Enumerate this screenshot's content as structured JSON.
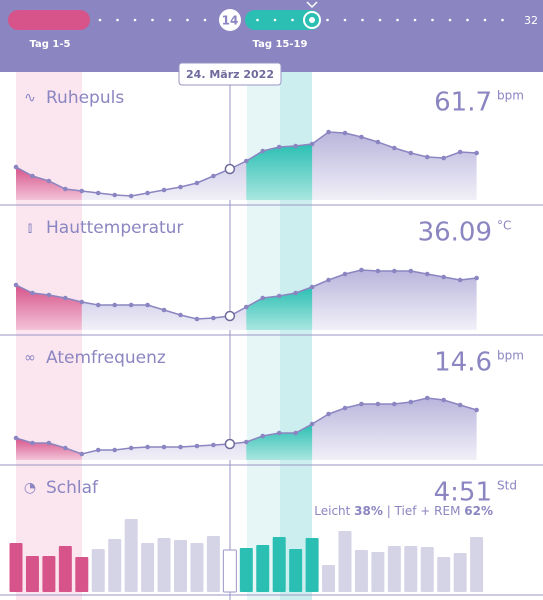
{
  "header": {
    "selected": "14",
    "last": "32",
    "range1": "Tag 1-5",
    "range2": "Tag 15-19",
    "date": "24. März 2022"
  },
  "chart_data": [
    {
      "type": "line",
      "title": "Ruhepuls",
      "value": "61.7",
      "unit": "bpm",
      "color": "#8b85c1",
      "ylim": [
        0,
        100
      ],
      "values": [
        33,
        24,
        19,
        11,
        9,
        7,
        5,
        4,
        7,
        10,
        13,
        17,
        24,
        31,
        39,
        49,
        53,
        54,
        56,
        68,
        67,
        63,
        58,
        52,
        47,
        43,
        42,
        48,
        47
      ]
    },
    {
      "type": "line",
      "title": "Hauttemperatur",
      "value": "36.09",
      "unit": "°C",
      "color": "#8b85c1",
      "ylim": [
        0,
        100
      ],
      "values": [
        45,
        37,
        35,
        32,
        28,
        25,
        25,
        25,
        25,
        20,
        15,
        11,
        12,
        14,
        23,
        32,
        34,
        37,
        43,
        50,
        56,
        60,
        59,
        59,
        59,
        56,
        53,
        50,
        52
      ]
    },
    {
      "type": "line",
      "title": "Atemfrequenz",
      "value": "14.6",
      "unit": "bpm",
      "color": "#8b85c1",
      "ylim": [
        0,
        100
      ],
      "values": [
        22,
        17,
        17,
        12,
        6,
        10,
        10,
        12,
        13,
        13,
        13,
        14,
        15,
        16,
        18,
        24,
        27,
        27,
        36,
        46,
        52,
        56,
        56,
        56,
        58,
        62,
        60,
        55,
        50
      ]
    },
    {
      "type": "bar",
      "title": "Schlaf",
      "value": "4:51",
      "unit": "Std",
      "color": "#d5d3e6",
      "ylim": [
        0,
        100
      ],
      "subtitle": {
        "light": "Leicht ",
        "light_value": "38%",
        "deep": " | Tief + REM ",
        "deep_value": "62%"
      },
      "values": [
        49,
        36,
        36,
        46,
        35,
        43,
        53,
        73,
        49,
        54,
        52,
        49,
        56,
        42,
        44,
        47,
        55,
        43,
        54,
        27,
        61,
        42,
        40,
        46,
        46,
        45,
        35,
        39,
        55
      ]
    }
  ]
}
